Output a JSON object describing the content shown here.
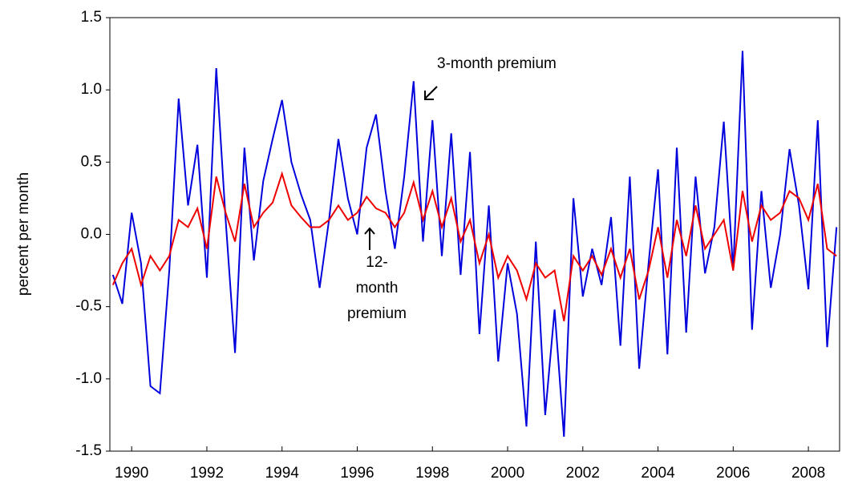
{
  "chart_data": {
    "type": "line",
    "y_label": "percent per month",
    "x": [
      1989.5,
      1989.75,
      1990,
      1990.25,
      1990.5,
      1990.75,
      1991,
      1991.25,
      1991.5,
      1991.75,
      1992,
      1992.25,
      1992.5,
      1992.75,
      1993,
      1993.25,
      1993.5,
      1993.75,
      1994,
      1994.25,
      1994.5,
      1994.75,
      1995,
      1995.25,
      1995.5,
      1995.75,
      1996,
      1996.25,
      1996.5,
      1996.75,
      1997,
      1997.25,
      1997.5,
      1997.75,
      1998,
      1998.25,
      1998.5,
      1998.75,
      1999,
      1999.25,
      1999.5,
      1999.75,
      2000,
      2000.25,
      2000.5,
      2000.75,
      2001,
      2001.25,
      2001.5,
      2001.75,
      2002,
      2002.25,
      2002.5,
      2002.75,
      2003,
      2003.25,
      2003.5,
      2003.75,
      2004,
      2004.25,
      2004.5,
      2004.75,
      2005,
      2005.25,
      2005.5,
      2005.75,
      2006,
      2006.25,
      2006.5,
      2006.75,
      2007,
      2007.25,
      2007.5,
      2007.75,
      2008,
      2008.25,
      2008.5,
      2008.75
    ],
    "series": [
      {
        "color": "#0000dd",
        "values": [
          -0.28,
          -0.48,
          0.15,
          -0.2,
          -1.05,
          -1.1,
          -0.25,
          0.94,
          0.2,
          0.62,
          -0.3,
          1.15,
          0.1,
          -0.82,
          0.6,
          -0.18,
          0.37,
          0.66,
          0.93,
          0.5,
          0.28,
          0.1,
          -0.37,
          0.1,
          0.66,
          0.25,
          0.0,
          0.6,
          0.83,
          0.3,
          -0.1,
          0.4,
          1.06,
          -0.05,
          0.79,
          -0.15,
          0.7,
          -0.28,
          0.57,
          -0.69,
          0.2,
          -0.88,
          -0.2,
          -0.55,
          -1.33,
          -0.05,
          -1.25,
          -0.52,
          -1.4,
          0.25,
          -0.43,
          -0.1,
          -0.35,
          0.12,
          -0.77,
          0.4,
          -0.93,
          -0.2,
          0.45,
          -0.83,
          0.6,
          -0.68,
          0.4,
          -0.27,
          0.05,
          0.78,
          -0.25,
          1.27,
          -0.66,
          0.3,
          -0.37,
          0.0,
          0.59,
          0.2,
          -0.38,
          0.79,
          -0.78,
          0.05
        ]
      },
      {
        "color": "#ee0000",
        "values": [
          -0.35,
          -0.2,
          -0.1,
          -0.35,
          -0.15,
          -0.25,
          -0.15,
          0.1,
          0.05,
          0.18,
          -0.1,
          0.4,
          0.15,
          -0.05,
          0.35,
          0.05,
          0.15,
          0.22,
          0.42,
          0.2,
          0.12,
          0.05,
          0.05,
          0.1,
          0.2,
          0.1,
          0.15,
          0.26,
          0.18,
          0.15,
          0.05,
          0.15,
          0.36,
          0.1,
          0.3,
          0.05,
          0.25,
          -0.05,
          0.1,
          -0.2,
          0.0,
          -0.3,
          -0.15,
          -0.25,
          -0.45,
          -0.2,
          -0.3,
          -0.25,
          -0.6,
          -0.15,
          -0.25,
          -0.15,
          -0.28,
          -0.1,
          -0.3,
          -0.1,
          -0.45,
          -0.25,
          0.05,
          -0.3,
          0.1,
          -0.15,
          0.2,
          -0.1,
          0.0,
          0.1,
          -0.25,
          0.3,
          -0.05,
          0.2,
          0.1,
          0.15,
          0.3,
          0.25,
          0.1,
          0.35,
          -0.1,
          -0.15
        ]
      }
    ],
    "annotations": [
      {
        "text": "3-month premium"
      },
      {
        "lines": [
          "12-",
          "month",
          "premium"
        ]
      }
    ],
    "xlim": [
      1989.42,
      2008.83
    ],
    "xticks": [
      1990,
      1992,
      1994,
      1996,
      1998,
      2000,
      2002,
      2004,
      2006,
      2008
    ],
    "ylim": [
      -1.5,
      1.5
    ],
    "yticks": [
      -1.5,
      {
        "value": -1.0,
        "label": "-1.0"
      },
      -0.5,
      {
        "value": 0.0,
        "label": "0.0"
      },
      0.5,
      {
        "value": 1.0,
        "label": "1.0"
      },
      1.5
    ]
  }
}
